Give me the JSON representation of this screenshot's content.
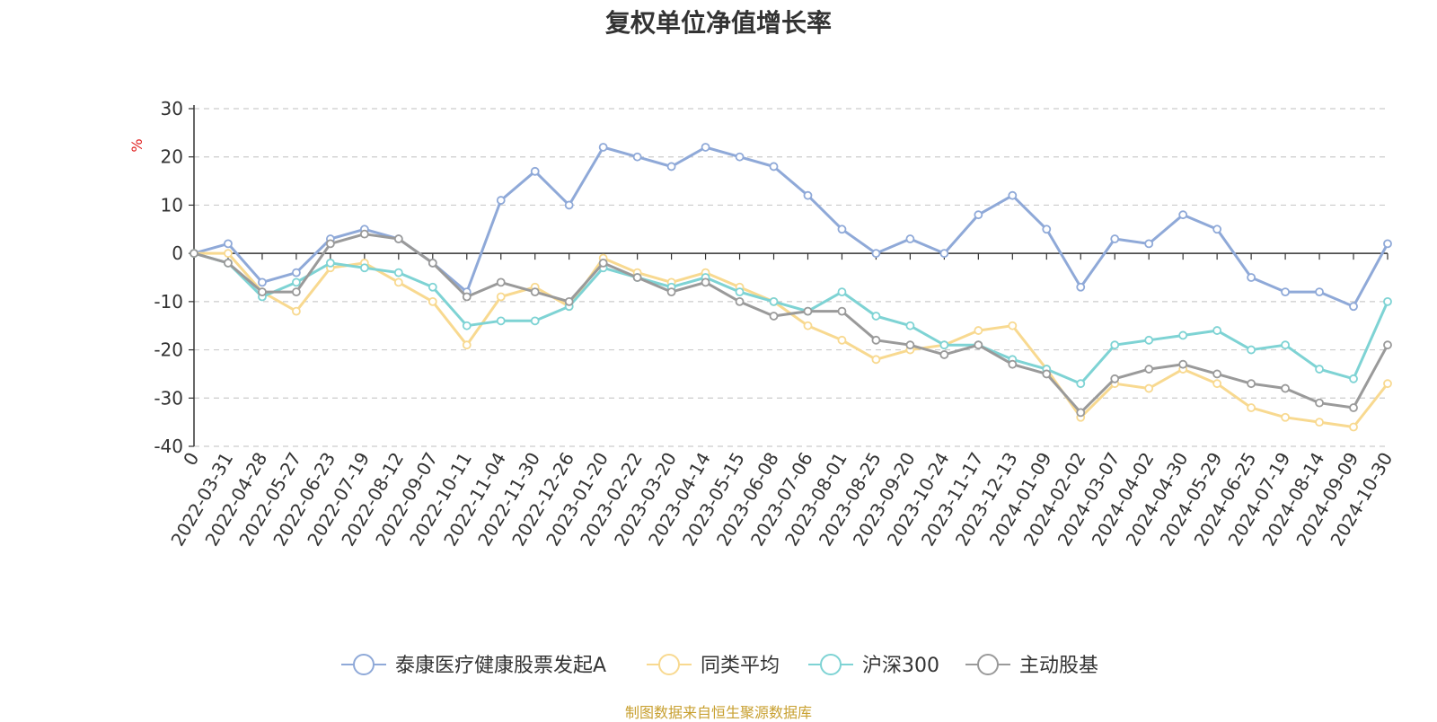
{
  "chart_data": {
    "type": "line",
    "title": "复权单位净值增长率",
    "ylabel": "%",
    "ylim": [
      -40,
      30
    ],
    "yticks": [
      30,
      20,
      10,
      0,
      -10,
      -20,
      -30,
      -40
    ],
    "grid": true,
    "legend_position": "bottom-center",
    "source_note": "制图数据来自恒生聚源数据库",
    "x": [
      "0",
      "2022-03-31",
      "2022-04-28",
      "2022-05-27",
      "2022-06-23",
      "2022-07-19",
      "2022-08-12",
      "2022-09-07",
      "2022-10-11",
      "2022-11-04",
      "2022-11-30",
      "2022-12-26",
      "2023-01-20",
      "2023-02-22",
      "2023-03-20",
      "2023-04-14",
      "2023-05-15",
      "2023-06-08",
      "2023-07-06",
      "2023-08-01",
      "2023-08-25",
      "2023-09-20",
      "2023-10-24",
      "2023-11-17",
      "2023-12-13",
      "2024-01-09",
      "2024-02-02",
      "2024-03-07",
      "2024-04-02",
      "2024-04-30",
      "2024-05-29",
      "2024-06-25",
      "2024-07-19",
      "2024-08-14",
      "2024-09-09",
      "2024-10-30"
    ],
    "series": [
      {
        "name": "泰康医疗健康股票发起A",
        "color": "#8fa9d8",
        "values": [
          0,
          2,
          -6,
          -4,
          3,
          5,
          3,
          -2,
          -8,
          11,
          17,
          10,
          22,
          20,
          18,
          22,
          20,
          18,
          12,
          5,
          0,
          3,
          0,
          8,
          12,
          5,
          -7,
          3,
          2,
          8,
          5,
          -5,
          -8,
          -8,
          -11,
          2
        ]
      },
      {
        "name": "同类平均",
        "color": "#f8d990",
        "values": [
          0,
          0,
          -8,
          -12,
          -3,
          -2,
          -6,
          -10,
          -19,
          -9,
          -7,
          -11,
          -1,
          -4,
          -6,
          -4,
          -7,
          -10,
          -15,
          -18,
          -22,
          -20,
          -19,
          -16,
          -15,
          -24,
          -34,
          -27,
          -28,
          -24,
          -27,
          -32,
          -34,
          -35,
          -36,
          -27
        ]
      },
      {
        "name": "沪深300",
        "color": "#7ed3d4",
        "values": [
          0,
          -2,
          -9,
          -6,
          -2,
          -3,
          -4,
          -7,
          -15,
          -14,
          -14,
          -11,
          -3,
          -5,
          -7,
          -5,
          -8,
          -10,
          -12,
          -8,
          -13,
          -15,
          -19,
          -19,
          -22,
          -24,
          -27,
          -19,
          -18,
          -17,
          -16,
          -20,
          -19,
          -24,
          -26,
          -10
        ]
      },
      {
        "name": "主动股基",
        "color": "#9a9a9a",
        "values": [
          0,
          -2,
          -8,
          -8,
          2,
          4,
          3,
          -2,
          -9,
          -6,
          -8,
          -10,
          -2,
          -5,
          -8,
          -6,
          -10,
          -13,
          -12,
          -12,
          -18,
          -19,
          -21,
          -19,
          -23,
          -25,
          -33,
          -26,
          -24,
          -23,
          -25,
          -27,
          -28,
          -31,
          -32,
          -19
        ]
      }
    ]
  }
}
